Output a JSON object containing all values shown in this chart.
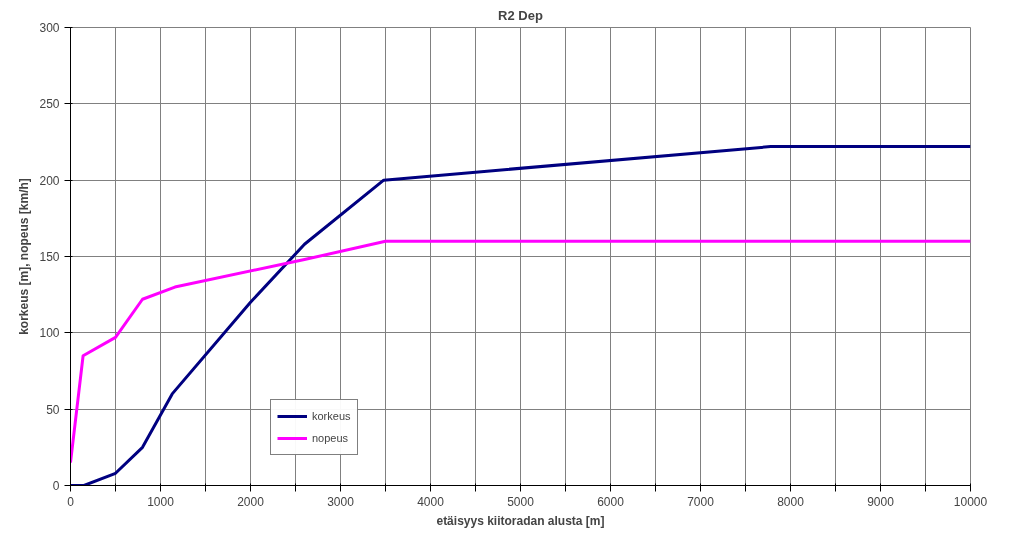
{
  "chart_data": {
    "type": "line",
    "title": "R2 Dep",
    "xlabel": "etäisyys kiitoradan alusta [m]",
    "ylabel": "korkeus [m], nopeus [km/h]",
    "series": [
      {
        "name": "korkeus",
        "color": "#000080",
        "x": [
          0,
          150,
          500,
          800,
          1130,
          2000,
          2600,
          3480,
          7780,
          10000
        ],
        "values": [
          0,
          0,
          8,
          25,
          60,
          120,
          158,
          200,
          222,
          222
        ]
      },
      {
        "name": "nopeus",
        "color": "#ff00ff",
        "x": [
          0,
          140,
          500,
          800,
          1160,
          2600,
          3500,
          10000
        ],
        "values": [
          15,
          85,
          97,
          122,
          130,
          148,
          160,
          160
        ]
      }
    ],
    "xlim": [
      0,
      10000
    ],
    "ylim": [
      0,
      300
    ],
    "xticks": [
      0,
      {
        "value": 500,
        "label": null
      },
      1000,
      {
        "value": 1500,
        "label": null
      },
      2000,
      {
        "value": 2500,
        "label": null
      },
      3000,
      {
        "value": 3500,
        "label": null
      },
      4000,
      {
        "value": 4500,
        "label": null
      },
      5000,
      {
        "value": 5500,
        "label": null
      },
      6000,
      {
        "value": 6500,
        "label": null
      },
      7000,
      {
        "value": 7500,
        "label": null
      },
      8000,
      {
        "value": 8500,
        "label": null
      },
      9000,
      {
        "value": 9500,
        "label": null
      },
      10000
    ],
    "yticks": [
      0,
      50,
      100,
      150,
      200,
      250,
      300
    ],
    "grid": true,
    "legend": "bottom left",
    "marker": "none",
    "line_style": "solid"
  }
}
